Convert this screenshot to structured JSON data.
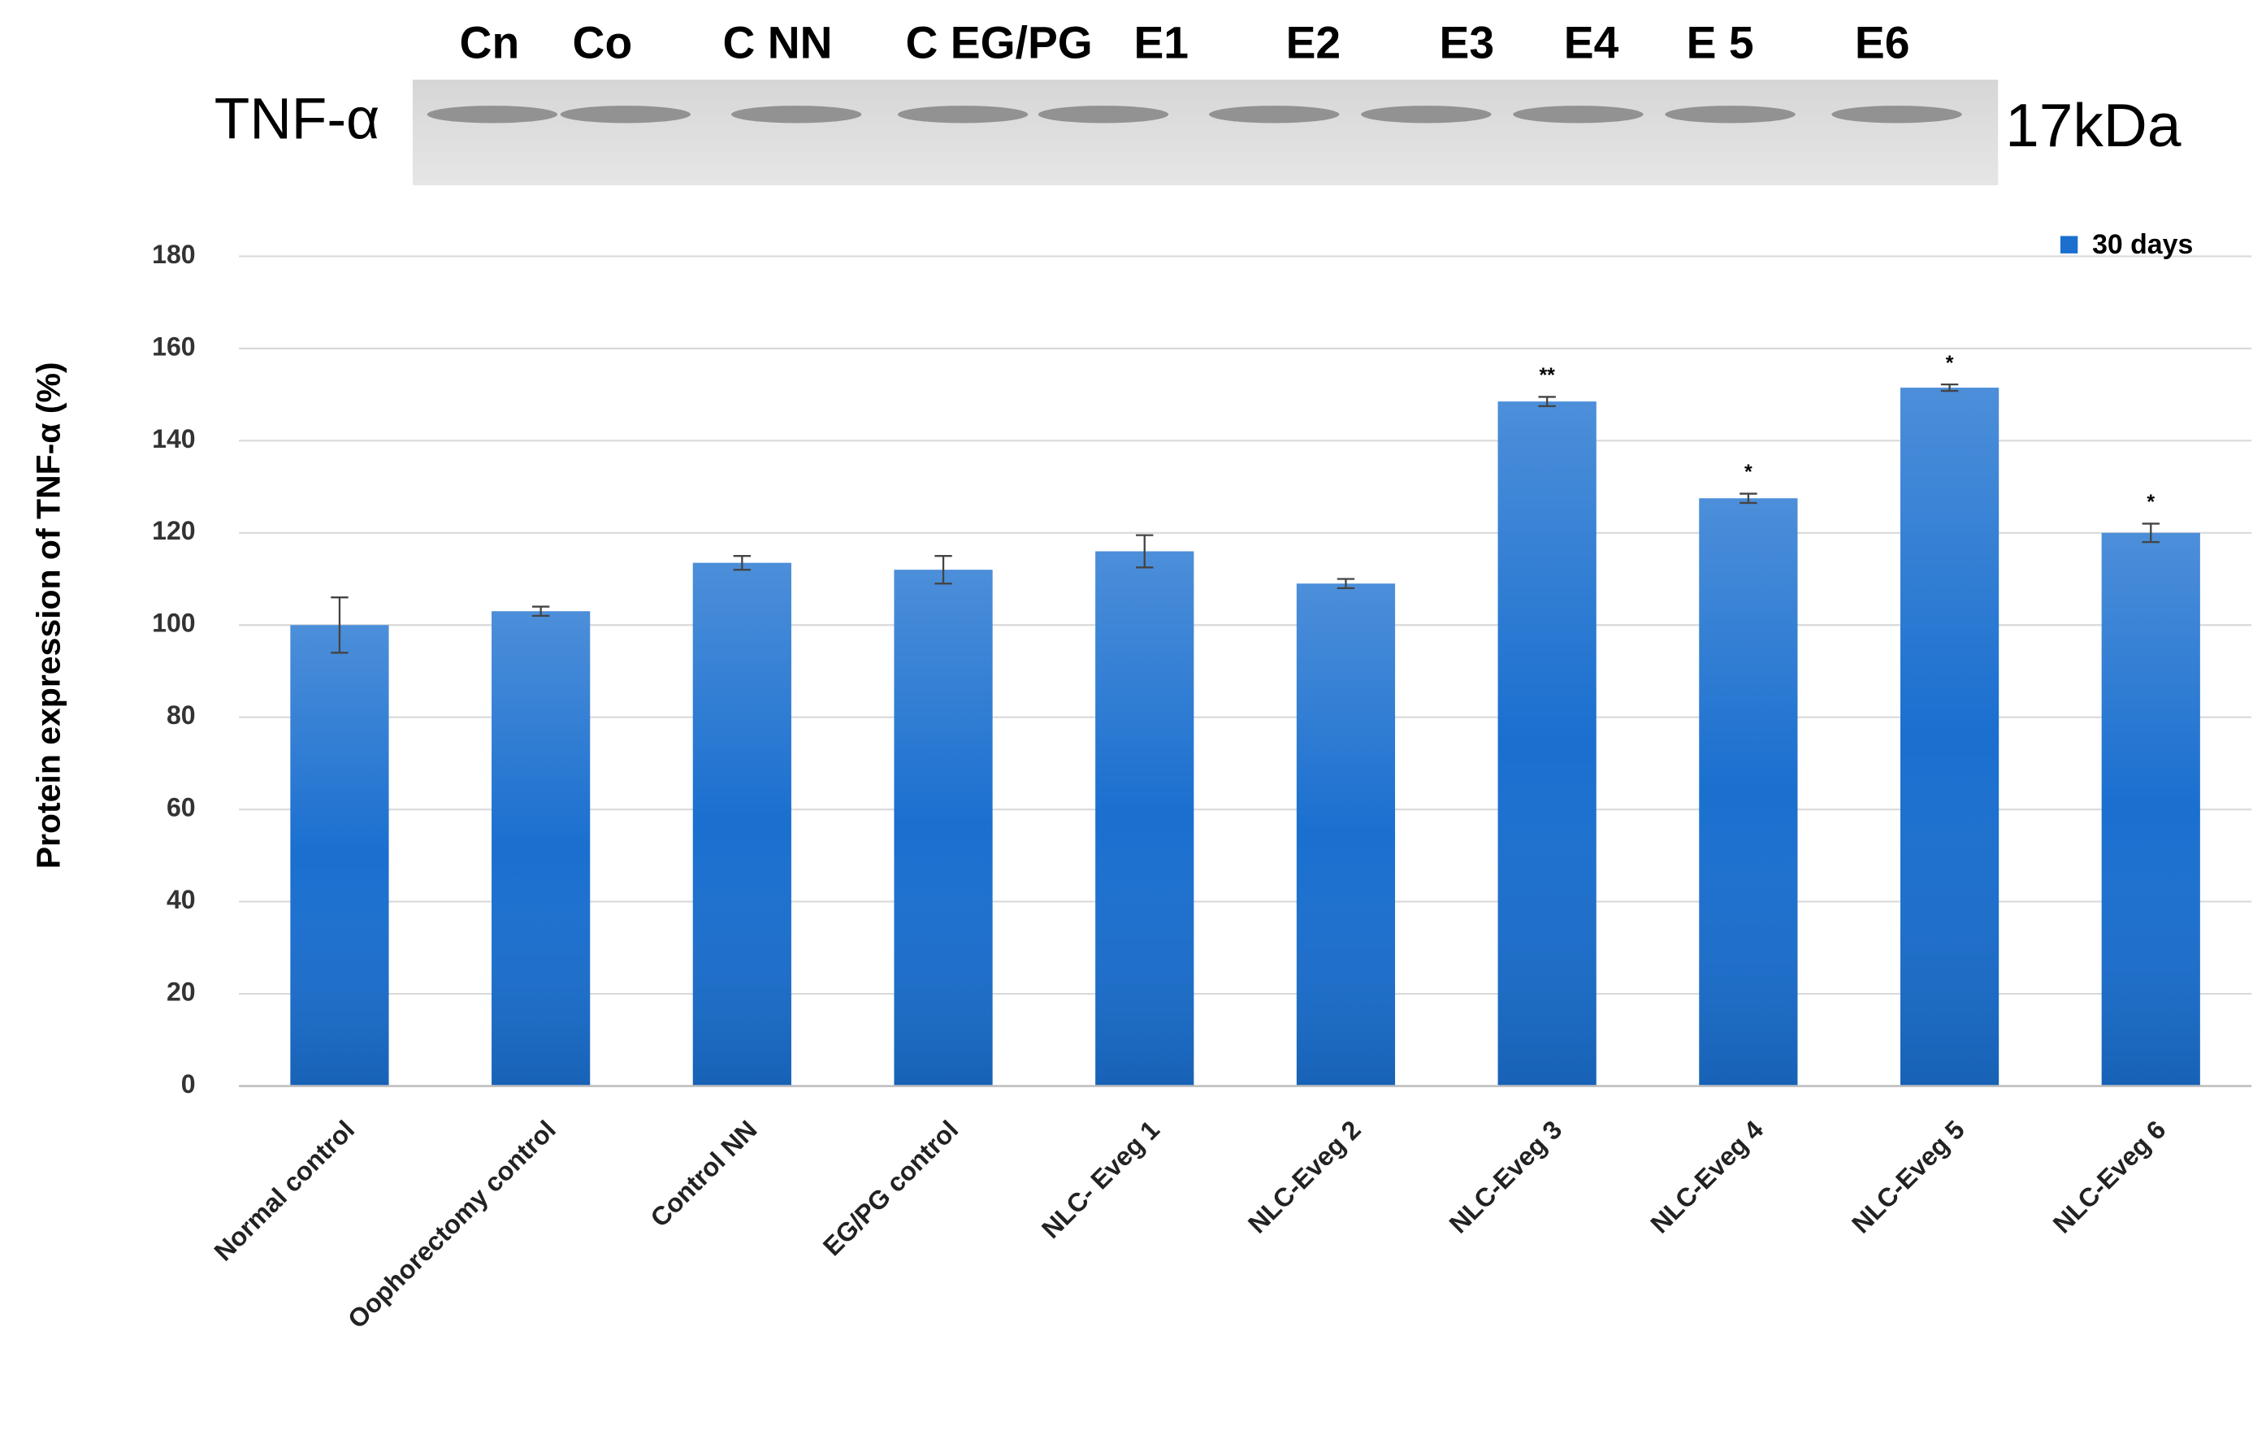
{
  "blot": {
    "label": "TNF-α",
    "size": "17kDa",
    "lanes": [
      "Cn",
      "Co",
      "C NN",
      "C EG/PG",
      "E1",
      "E2",
      "E3",
      "E4",
      "E 5",
      "E6"
    ]
  },
  "chart_data": {
    "type": "bar",
    "ylabel": "Protein expression of TNF-α  (%)",
    "categories": [
      "Normal control",
      "Oophorectomy control",
      "Control NN",
      "EG/PG control",
      "NLC- Eveg 1",
      "NLC-Eveg 2",
      "NLC-Eveg 3",
      "NLC-Eveg 4",
      "NLC-Eveg 5",
      "NLC-Eveg 6"
    ],
    "series": [
      {
        "name": "30 days",
        "color": "#1a6fcf",
        "values": [
          100,
          103,
          113.5,
          112,
          116,
          109,
          148.5,
          127.5,
          151.5,
          120
        ],
        "errors": [
          6,
          1,
          1.5,
          3,
          3.5,
          1,
          1,
          1,
          0.7,
          2
        ]
      }
    ],
    "value_annotations": [
      null,
      null,
      null,
      null,
      null,
      null,
      "**",
      "*",
      "*",
      "*"
    ],
    "ylim": [
      0,
      180
    ],
    "yticks": [
      0,
      20,
      40,
      60,
      80,
      100,
      120,
      140,
      160,
      180
    ],
    "grid": true,
    "legend": "top-right"
  }
}
